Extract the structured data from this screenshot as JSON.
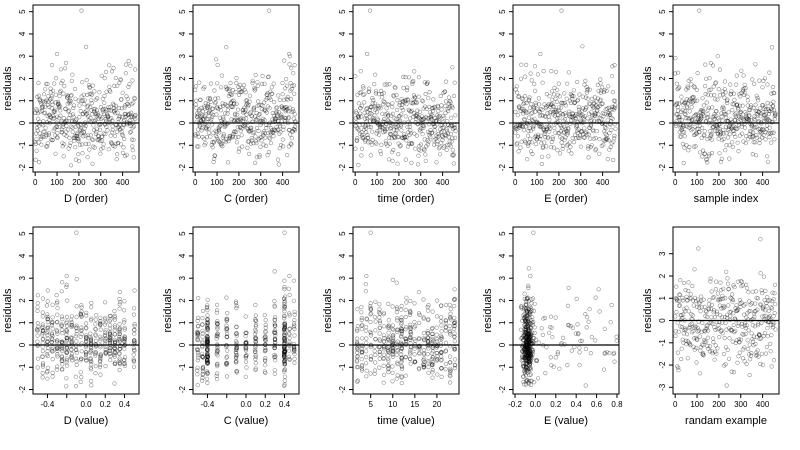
{
  "chart_data": [
    {
      "type": "scatter",
      "xlabel": "D (order)",
      "ylabel": "residuals",
      "xlim": [
        -10,
        475
      ],
      "ylim": [
        -2.2,
        5.3
      ],
      "xticks": [
        0,
        100,
        200,
        300,
        400
      ],
      "yticks": [
        -2,
        -1,
        0,
        1,
        2,
        3,
        4,
        5
      ],
      "hline": 0,
      "x_mode": "order",
      "n": 470,
      "seed": 11,
      "profile": "std",
      "outliers": [
        {
          "x": 212,
          "y": 5.05
        },
        {
          "x": 100,
          "y": 3.1
        },
        {
          "x": 77,
          "y": 2.6
        }
      ]
    },
    {
      "type": "scatter",
      "xlabel": "C (order)",
      "ylabel": "residuals",
      "xlim": [
        -10,
        475
      ],
      "ylim": [
        -2.2,
        5.3
      ],
      "xticks": [
        0,
        100,
        200,
        300,
        400
      ],
      "yticks": [
        -2,
        -1,
        0,
        1,
        2,
        3,
        4,
        5
      ],
      "hline": 0,
      "x_mode": "order",
      "n": 470,
      "seed": 23,
      "profile": "std",
      "outliers": [
        {
          "x": 338,
          "y": 5.05
        },
        {
          "x": 430,
          "y": 3.1
        },
        {
          "x": 455,
          "y": 2.6
        }
      ]
    },
    {
      "type": "scatter",
      "xlabel": "time (order)",
      "ylabel": "residuals",
      "xlim": [
        -10,
        475
      ],
      "ylim": [
        -2.2,
        5.3
      ],
      "xticks": [
        0,
        100,
        200,
        300,
        400
      ],
      "yticks": [
        -2,
        -1,
        0,
        1,
        2,
        3,
        4,
        5
      ],
      "hline": 0,
      "x_mode": "order",
      "n": 470,
      "seed": 37,
      "profile": "std",
      "outliers": [
        {
          "x": 68,
          "y": 5.05
        },
        {
          "x": 55,
          "y": 3.1
        },
        {
          "x": 445,
          "y": 2.5
        }
      ]
    },
    {
      "type": "scatter",
      "xlabel": "E (order)",
      "ylabel": "residuals",
      "xlim": [
        -10,
        475
      ],
      "ylim": [
        -2.2,
        5.3
      ],
      "xticks": [
        0,
        100,
        200,
        300,
        400
      ],
      "yticks": [
        -2,
        -1,
        0,
        1,
        2,
        3,
        4,
        5
      ],
      "hline": 0,
      "x_mode": "order",
      "n": 470,
      "seed": 41,
      "profile": "std",
      "outliers": [
        {
          "x": 212,
          "y": 5.05
        },
        {
          "x": 115,
          "y": 3.1
        },
        {
          "x": 455,
          "y": 2.6
        }
      ]
    },
    {
      "type": "scatter",
      "xlabel": "sample index",
      "ylabel": "residuals",
      "xlim": [
        -10,
        475
      ],
      "ylim": [
        -2.2,
        5.3
      ],
      "xticks": [
        0,
        100,
        200,
        300,
        400
      ],
      "yticks": [
        -2,
        -1,
        0,
        1,
        2,
        3,
        4,
        5
      ],
      "hline": 0,
      "x_mode": "order",
      "n": 470,
      "seed": 53,
      "profile": "std",
      "outliers": [
        {
          "x": 110,
          "y": 5.05
        },
        {
          "x": 195,
          "y": 3.0
        },
        {
          "x": 205,
          "y": 2.4
        }
      ]
    },
    {
      "type": "scatter",
      "xlabel": "D (value)",
      "ylabel": "residuals",
      "xlim": [
        -0.55,
        0.55
      ],
      "ylim": [
        -2.2,
        5.3
      ],
      "xticks": [
        -0.4,
        -0.2,
        0.0,
        0.2,
        0.4
      ],
      "xticklabels": [
        "-0.4",
        "",
        "0.0",
        "0.2",
        "0.4"
      ],
      "yticks": [
        -2,
        -1,
        0,
        1,
        2,
        3,
        4,
        5
      ],
      "hline": 0,
      "x_mode": "grid",
      "x_levels": [
        -0.5,
        -0.45,
        -0.4,
        -0.35,
        -0.3,
        -0.25,
        -0.2,
        -0.15,
        -0.1,
        -0.05,
        0.0,
        0.05,
        0.1,
        0.15,
        0.2,
        0.25,
        0.3,
        0.35,
        0.4,
        0.5
      ],
      "n": 470,
      "seed": 61,
      "profile": "std",
      "outliers": [
        {
          "x": -0.1,
          "y": 5.05
        },
        {
          "x": -0.2,
          "y": 3.1
        },
        {
          "x": -0.2,
          "y": 2.7
        }
      ]
    },
    {
      "type": "scatter",
      "xlabel": "C (value)",
      "ylabel": "residuals",
      "xlim": [
        -0.55,
        0.55
      ],
      "ylim": [
        -2.2,
        5.3
      ],
      "xticks": [
        -0.4,
        -0.2,
        0.0,
        0.2,
        0.4
      ],
      "xticklabels": [
        "-0.4",
        "",
        "0.0",
        "0.2",
        "0.4"
      ],
      "yticks": [
        -2,
        -1,
        0,
        1,
        2,
        3,
        4,
        5
      ],
      "hline": 0,
      "x_mode": "grid",
      "x_levels": [
        -0.5,
        -0.45,
        -0.4,
        -0.4,
        -0.4,
        -0.3,
        -0.2,
        -0.1,
        0.0,
        0.1,
        0.2,
        0.3,
        0.4,
        0.4,
        0.4,
        0.45,
        0.5
      ],
      "n": 470,
      "seed": 71,
      "profile": "std",
      "outliers": [
        {
          "x": 0.4,
          "y": 5.05
        },
        {
          "x": 0.45,
          "y": 3.1
        },
        {
          "x": 0.4,
          "y": 2.6
        }
      ]
    },
    {
      "type": "scatter",
      "xlabel": "time (value)",
      "ylabel": "residuals",
      "xlim": [
        1,
        25
      ],
      "ylim": [
        -2.2,
        5.3
      ],
      "xticks": [
        5,
        10,
        15,
        20
      ],
      "yticks": [
        -2,
        -1,
        0,
        1,
        2,
        3,
        4,
        5
      ],
      "hline": 0,
      "x_mode": "grid",
      "x_levels": [
        2,
        3,
        4,
        5,
        6,
        7,
        8,
        9,
        10,
        11,
        12,
        12,
        13,
        14,
        15,
        16,
        17,
        18,
        19,
        20,
        21,
        22,
        23,
        24
      ],
      "n": 470,
      "seed": 83,
      "profile": "std",
      "outliers": [
        {
          "x": 5,
          "y": 5.05
        },
        {
          "x": 4,
          "y": 3.1
        },
        {
          "x": 24,
          "y": 2.5
        }
      ]
    },
    {
      "type": "scatter",
      "xlabel": "E (value)",
      "ylabel": "residuals",
      "xlim": [
        -0.22,
        0.82
      ],
      "ylim": [
        -2.2,
        5.3
      ],
      "xticks": [
        -0.2,
        0.0,
        0.2,
        0.4,
        0.6,
        0.8
      ],
      "xticklabels": [
        "-0.2",
        "0.0",
        "0.2",
        "0.4",
        "0.6",
        "0.8"
      ],
      "yticks": [
        -2,
        -1,
        0,
        1,
        2,
        3,
        4,
        5
      ],
      "hline": 0,
      "x_mode": "skew",
      "n": 470,
      "seed": 97,
      "profile": "std",
      "outliers": [
        {
          "x": -0.02,
          "y": 5.05
        },
        {
          "x": 0.62,
          "y": 2.5
        },
        {
          "x": -0.05,
          "y": 3.1
        }
      ]
    },
    {
      "type": "scatter",
      "xlabel": "randam example",
      "ylabel": "residuals",
      "xlim": [
        -10,
        475
      ],
      "ylim": [
        -3.3,
        4.2
      ],
      "xticks": [
        0,
        100,
        200,
        300,
        400
      ],
      "yticks": [
        -3,
        -2,
        -1,
        0,
        1,
        2,
        3
      ],
      "hline": 0,
      "x_mode": "order",
      "n": 400,
      "seed": 101,
      "profile": "normal",
      "outliers": [
        {
          "x": 390,
          "y": 3.65
        }
      ]
    }
  ]
}
